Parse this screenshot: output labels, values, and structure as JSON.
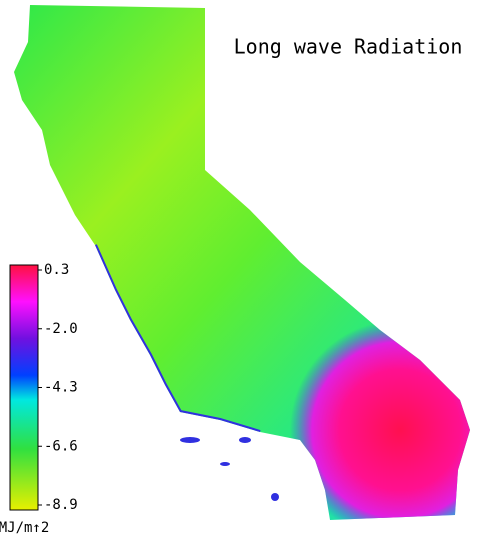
{
  "title": "Long wave Radiation",
  "colorbar": {
    "lim": [
      -8.9,
      0.3
    ],
    "ticks": [
      0.3,
      {
        "value": -2,
        "label": "-2.0"
      },
      -4.3,
      -6.6,
      -8.9
    ],
    "unit": "MJ/m↑2"
  }
}
